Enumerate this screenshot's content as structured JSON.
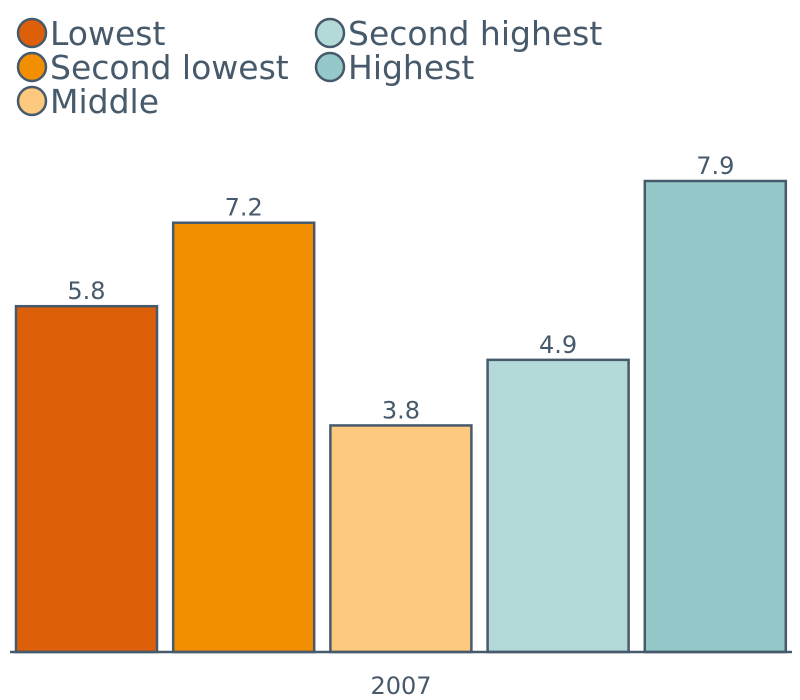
{
  "chart_data": {
    "type": "bar",
    "categories": [
      "2007"
    ],
    "series": [
      {
        "name": "Lowest",
        "values": [
          5.8
        ],
        "color": "#de5f0a"
      },
      {
        "name": "Second lowest",
        "values": [
          7.2
        ],
        "color": "#f28f00"
      },
      {
        "name": "Middle",
        "values": [
          3.8
        ],
        "color": "#fcc97e"
      },
      {
        "name": "Second highest",
        "values": [
          4.9
        ],
        "color": "#b4d9d9"
      },
      {
        "name": "Highest",
        "values": [
          7.9
        ],
        "color": "#95c8c9"
      }
    ],
    "ylim": [
      0,
      7.9
    ],
    "legend": "top-left",
    "grid": false,
    "data_labels": true,
    "text_color": "#475a6b",
    "stroke_color": "#475a6b"
  }
}
